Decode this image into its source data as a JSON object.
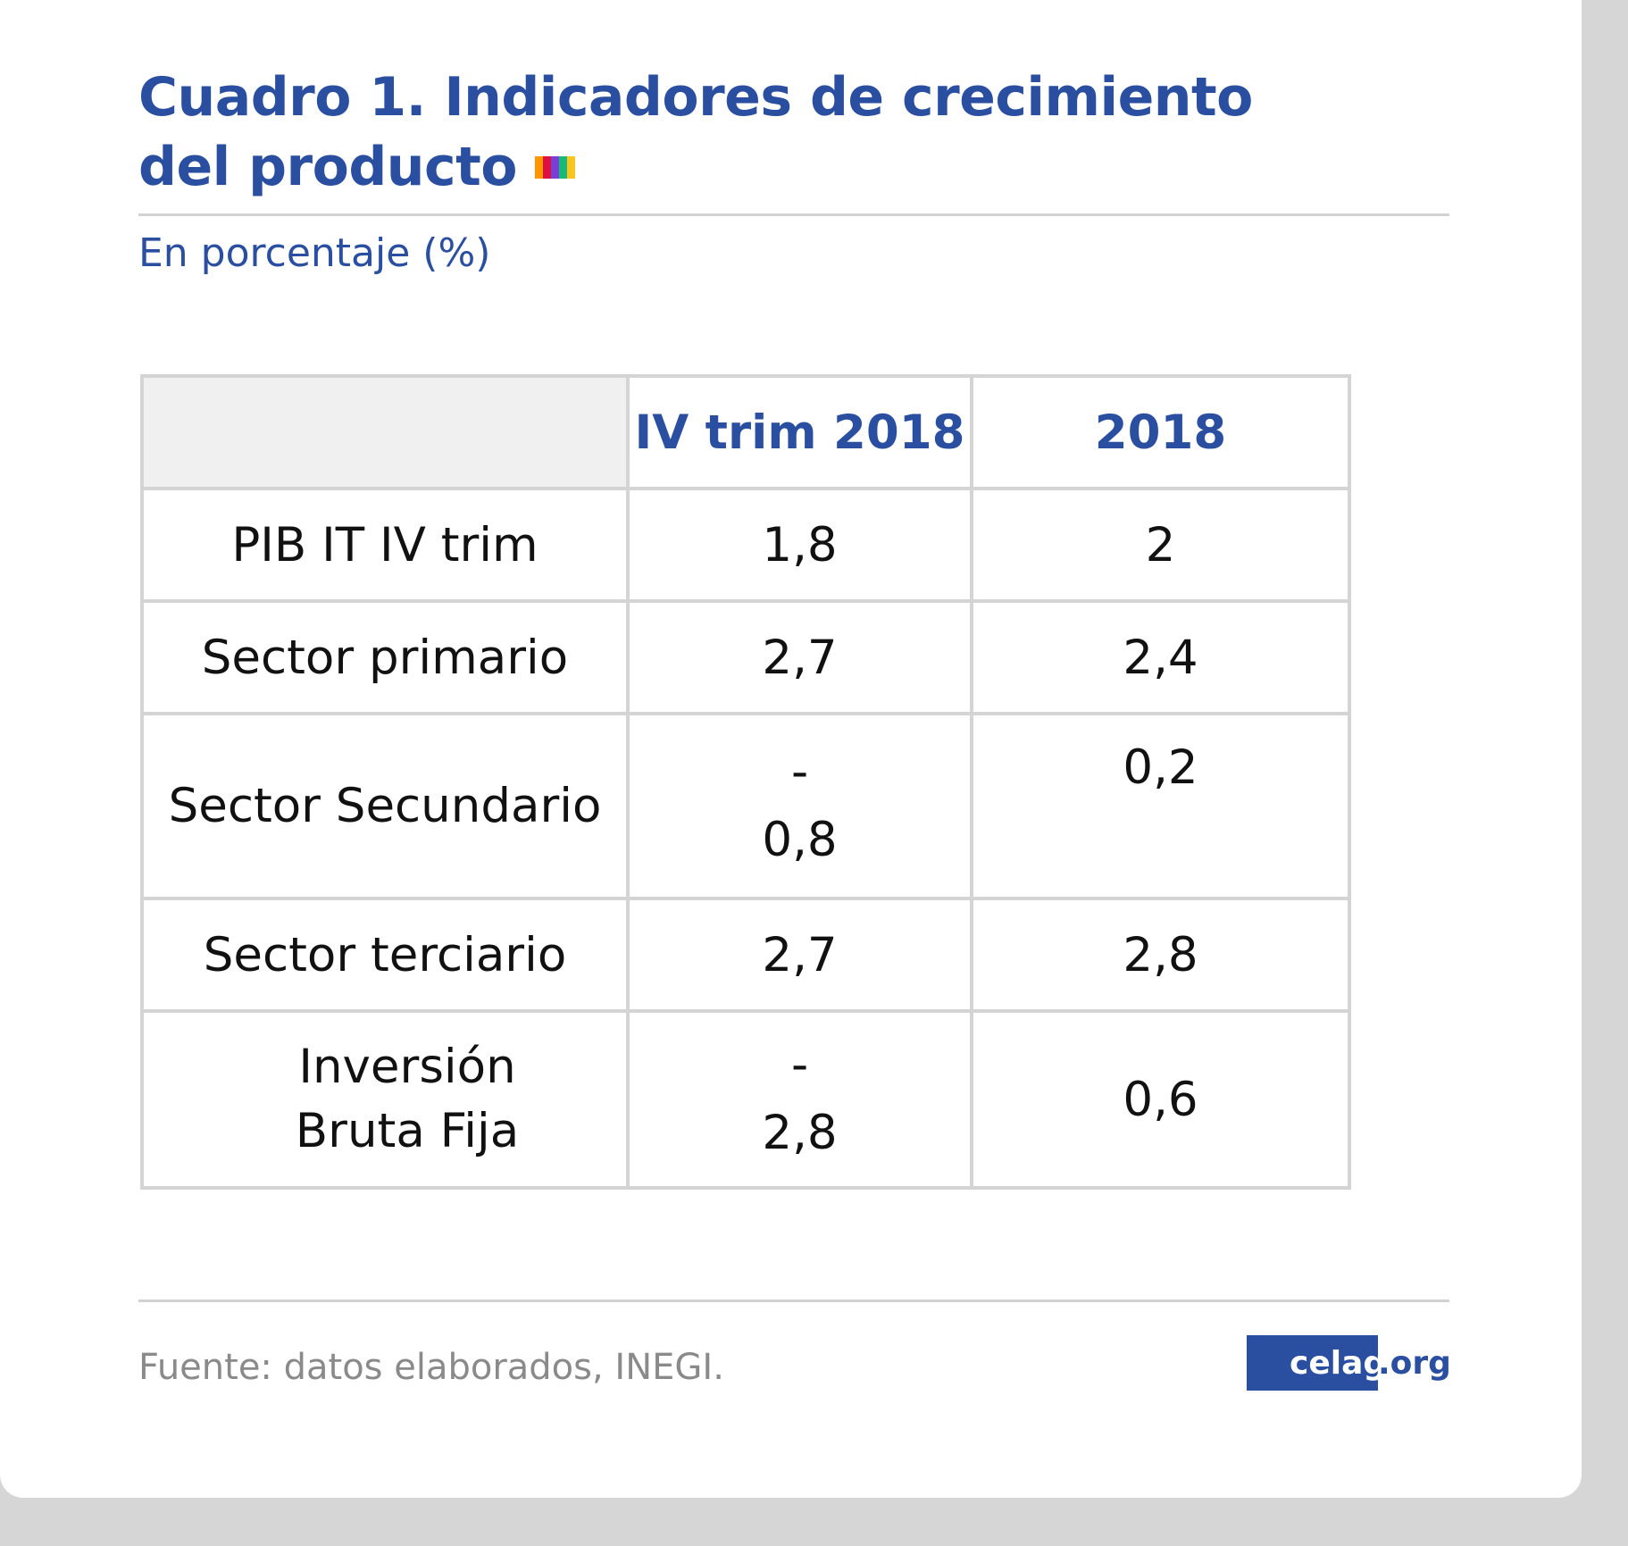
{
  "title_line1": "Cuadro 1. Indicadores de crecimiento",
  "title_line2": "del producto",
  "accent_colors": [
    "#ff9500",
    "#de1040",
    "#7a3fd6",
    "#1cb87a",
    "#f8c61e"
  ],
  "subtitle": "En porcentaje (%)",
  "table": {
    "headers": [
      "",
      "IV trim 2018",
      "2018"
    ],
    "rows": [
      {
        "label": "PIB IT IV trim",
        "q4": "1,8",
        "year": "2"
      },
      {
        "label": "Sector primario",
        "q4": "2,7",
        "year": "2,4"
      },
      {
        "label": "Sector Secundario",
        "q4_sign": "-",
        "q4": "0,8",
        "year": "0,2"
      },
      {
        "label": "Sector terciario",
        "q4": "2,7",
        "year": "2,8"
      },
      {
        "label_line1": "Inversión",
        "label_line2": "Bruta Fija",
        "q4_sign": "-",
        "q4": "2,8",
        "year": "0,6"
      }
    ]
  },
  "footer": {
    "source": "Fuente: datos elaborados, INEGI.",
    "logo_main": "celag",
    "logo_suffix": ".org"
  }
}
